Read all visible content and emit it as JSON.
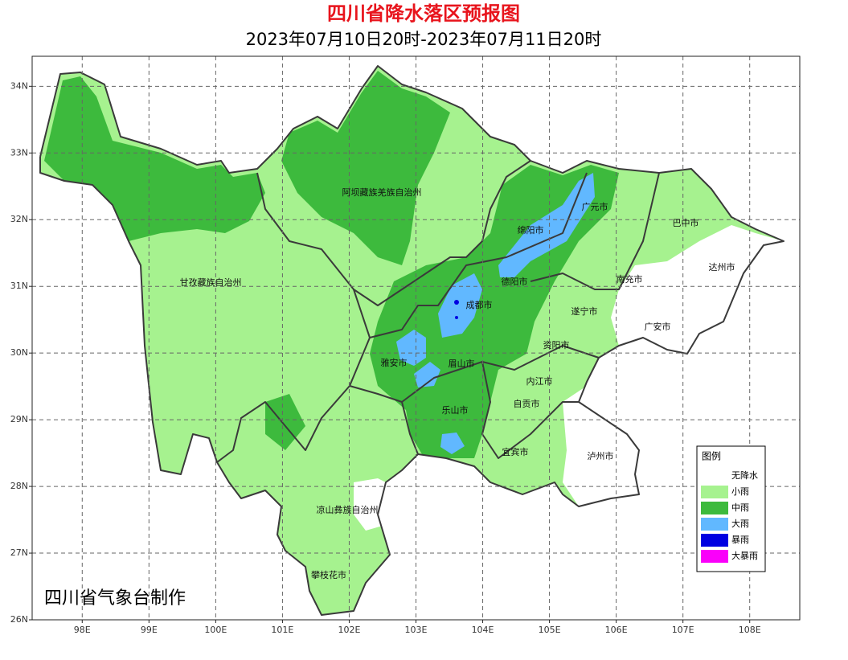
{
  "map": {
    "title": "四川省降水落区预报图",
    "subtitle": "2023年07月10日20时-2023年07月11日20时",
    "credit": "四川省气象台制作",
    "xlim": [
      97.25,
      108.75
    ],
    "ylim": [
      26,
      34.45
    ],
    "grid": true,
    "xticks": [
      {
        "value": 98,
        "label": "98E"
      },
      {
        "value": 99,
        "label": "99E"
      },
      {
        "value": 100,
        "label": "100E"
      },
      {
        "value": 101,
        "label": "101E"
      },
      {
        "value": 102,
        "label": "102E"
      },
      {
        "value": 103,
        "label": "103E"
      },
      {
        "value": 104,
        "label": "104E"
      },
      {
        "value": 105,
        "label": "105E"
      },
      {
        "value": 106,
        "label": "106E"
      },
      {
        "value": 107,
        "label": "107E"
      },
      {
        "value": 108,
        "label": "108E"
      }
    ],
    "yticks": [
      {
        "value": 26,
        "label": "26N"
      },
      {
        "value": 27,
        "label": "27N"
      },
      {
        "value": 28,
        "label": "28N"
      },
      {
        "value": 29,
        "label": "29N"
      },
      {
        "value": 30,
        "label": "30N"
      },
      {
        "value": 31,
        "label": "31N"
      },
      {
        "value": 32,
        "label": "32N"
      },
      {
        "value": 33,
        "label": "33N"
      },
      {
        "value": 34,
        "label": "34N"
      }
    ],
    "regions": [
      "阿坝藏族羌族自治州",
      "甘孜藏族自治州",
      "绵阳市",
      "广元市",
      "巴中市",
      "达州市",
      "南充市",
      "德阳市",
      "成都市",
      "遂宁市",
      "广安市",
      "资阳市",
      "雅安市",
      "眉山市",
      "内江市",
      "自贡市",
      "乐山市",
      "宜宾市",
      "泸州市",
      "凉山彝族自治州",
      "攀枝花市"
    ],
    "legend": {
      "title": "图例",
      "entries": [
        {
          "name": "无降水",
          "color": "#ffffff"
        },
        {
          "name": "小雨",
          "color": "#a6f28f"
        },
        {
          "name": "中雨",
          "color": "#3dba3d"
        },
        {
          "name": "大雨",
          "color": "#61b8ff"
        },
        {
          "name": "暴雨",
          "color": "#0000e1"
        },
        {
          "name": "大暴雨",
          "color": "#fa00fa"
        }
      ]
    }
  }
}
